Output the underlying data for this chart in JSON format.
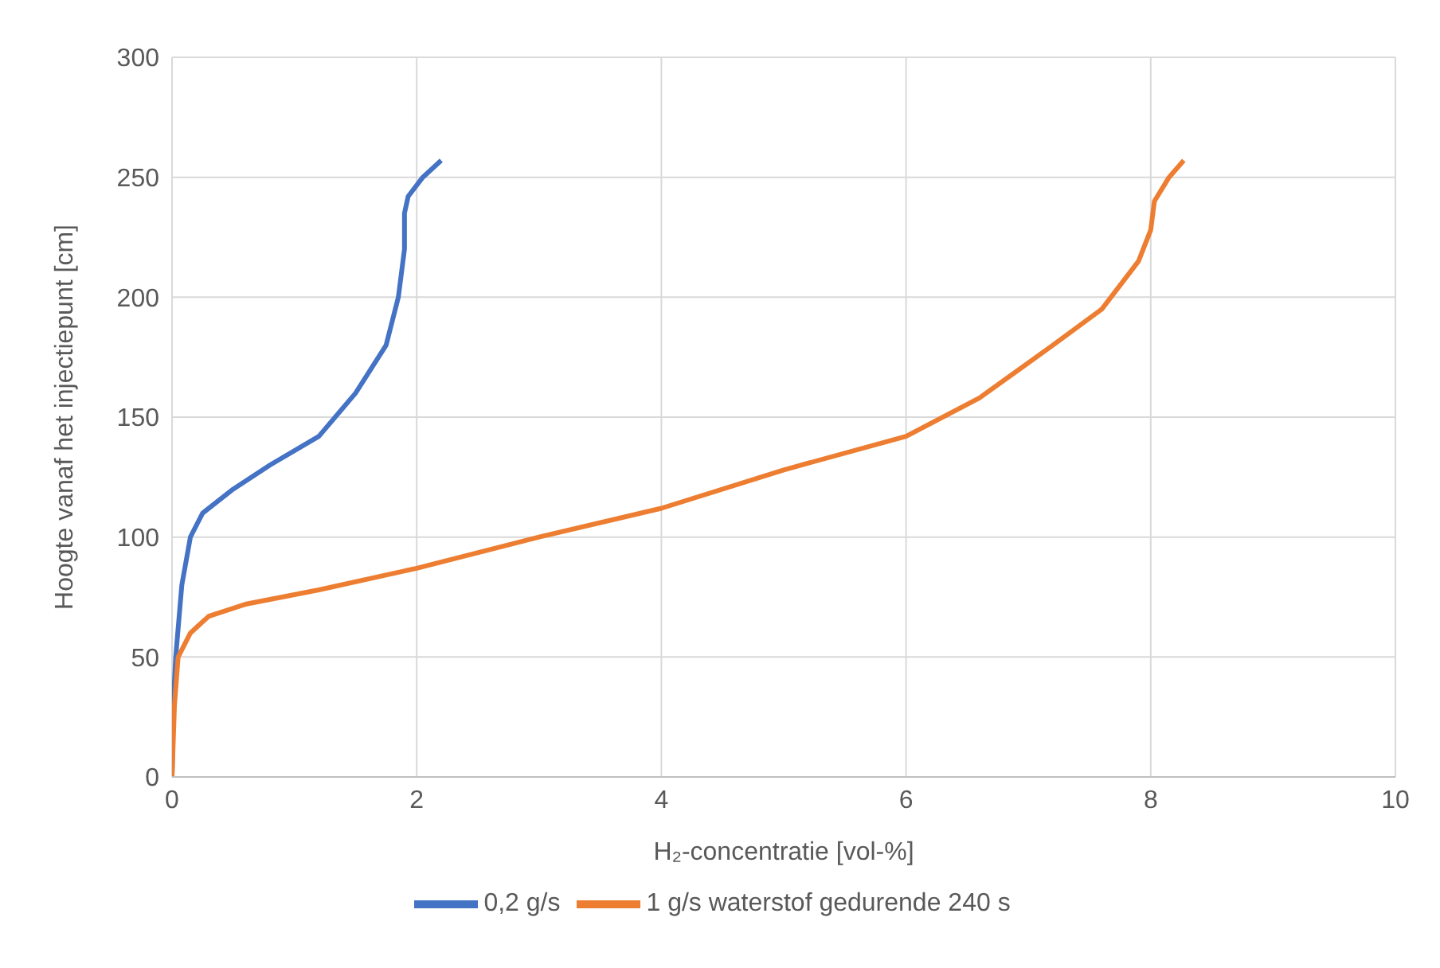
{
  "chart_data": {
    "type": "line",
    "xlabel": "H₂-concentratie   [vol-%]",
    "ylabel": "Hoogte vanaf het injectiepunt   [cm]",
    "xlim": [
      0,
      10
    ],
    "xticks": [
      0,
      2,
      4,
      6,
      8,
      10
    ],
    "ylim": [
      0,
      300
    ],
    "yticks": [
      0,
      50,
      100,
      150,
      200,
      250,
      300
    ],
    "grid": true,
    "legend": "bottom",
    "marker": "none",
    "line_style": "solid",
    "series": [
      {
        "name": "0,2 g/s",
        "color": "#4472c4",
        "x": [
          0,
          0.01,
          0.03,
          0.08,
          0.15,
          0.25,
          0.5,
          0.8,
          1.2,
          1.5,
          1.75,
          1.85,
          1.9,
          1.9,
          1.93,
          2.05,
          2.2
        ],
        "values": [
          0,
          30,
          50,
          80,
          100,
          110,
          120,
          130,
          142,
          160,
          180,
          200,
          220,
          235,
          242,
          250,
          257
        ]
      },
      {
        "name": "1 g/s waterstof gedurende 240 s",
        "color": "#ed7d31",
        "x": [
          0,
          0.02,
          0.05,
          0.15,
          0.3,
          0.6,
          1.2,
          2,
          3,
          4,
          5,
          6,
          6.6,
          7.2,
          7.6,
          7.9,
          8,
          8.03,
          8.15,
          8.27
        ],
        "values": [
          0,
          30,
          50,
          60,
          67,
          72,
          78,
          87,
          100,
          112,
          128,
          142,
          158,
          180,
          195,
          215,
          228,
          240,
          250,
          257
        ]
      }
    ]
  }
}
